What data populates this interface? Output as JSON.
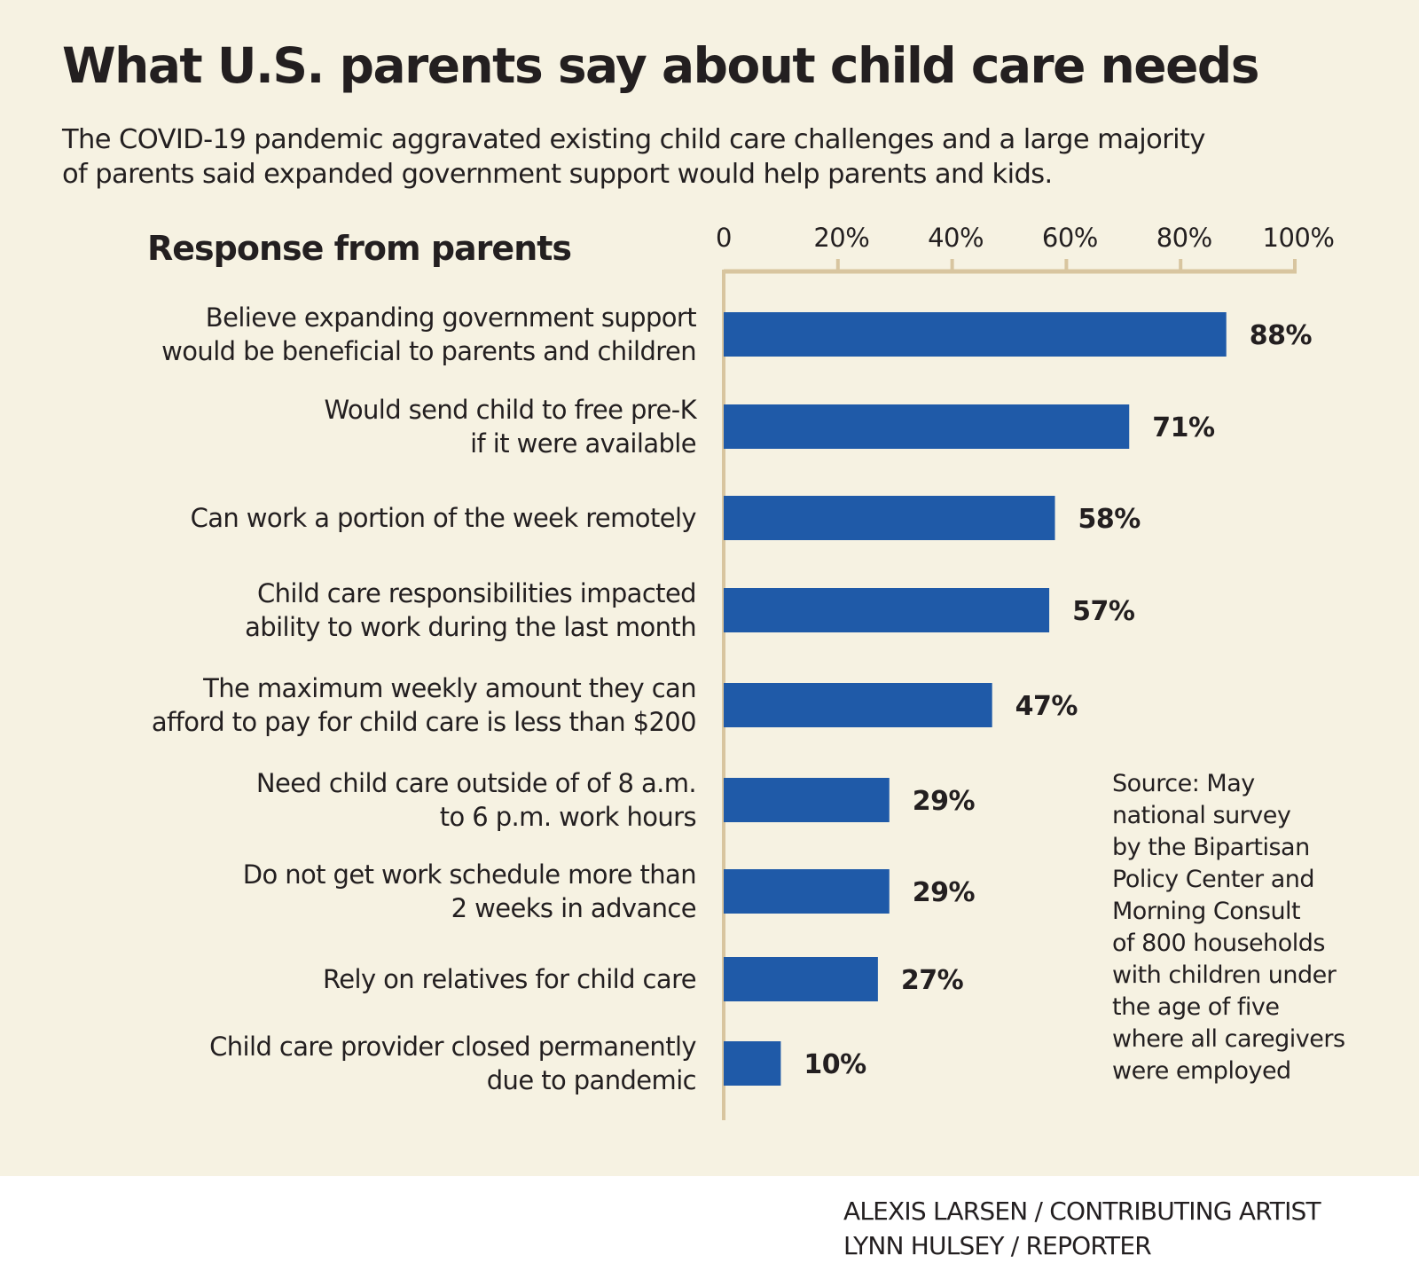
{
  "title": "What U.S. parents say about child care needs",
  "subtitle_lines": [
    "The COVID-19 pandemic aggravated existing child care challenges and a large majority",
    "of parents said expanded government support would help parents and kids."
  ],
  "colors": {
    "background": "#f6f2e2",
    "bar": "#1f5aa8",
    "axis": "#d8c59f",
    "text": "#231f20"
  },
  "chart_data": {
    "type": "bar",
    "orientation": "horizontal",
    "title": "What U.S. parents say about child care needs",
    "category_heading": "Response from parents",
    "xlabel": "",
    "ylabel": "Response from parents",
    "xlim": [
      0,
      100
    ],
    "x_ticks": [
      0,
      20,
      40,
      60,
      80,
      100
    ],
    "x_tick_labels": [
      "0",
      "20%",
      "40%",
      "60%",
      "80%",
      "100%"
    ],
    "axis_position": "top",
    "grid": false,
    "categories": [
      [
        "Believe expanding government support",
        "would be beneficial to parents and children"
      ],
      [
        "Would send child to free pre-K",
        "if it were available"
      ],
      [
        "Can work a portion of the week remotely"
      ],
      [
        "Child care responsibilities impacted",
        "ability to work during the last month"
      ],
      [
        "The maximum weekly amount they can",
        "afford to pay for child care is less than $200"
      ],
      [
        "Need child care outside of of 8 a.m.",
        "to 6 p.m. work hours"
      ],
      [
        "Do not get work schedule more than",
        "2 weeks in advance"
      ],
      [
        "Rely on relatives for child care"
      ],
      [
        "Child care provider closed permanently",
        "due to pandemic"
      ]
    ],
    "values": [
      88,
      71,
      58,
      57,
      47,
      29,
      29,
      27,
      10
    ],
    "value_labels": [
      "88%",
      "71%",
      "58%",
      "57%",
      "47%",
      "29%",
      "29%",
      "27%",
      "10%"
    ],
    "units": "percent of parents"
  },
  "source_lines": [
    "Source: May",
    "national survey",
    "by the Bipartisan",
    "Policy Center and",
    "Morning Consult",
    "of 800 households",
    "with children under",
    "the age of five",
    "where all caregivers",
    "were employed"
  ],
  "credits": [
    "ALEXIS LARSEN / CONTRIBUTING ARTIST",
    "LYNN HULSEY / REPORTER"
  ]
}
